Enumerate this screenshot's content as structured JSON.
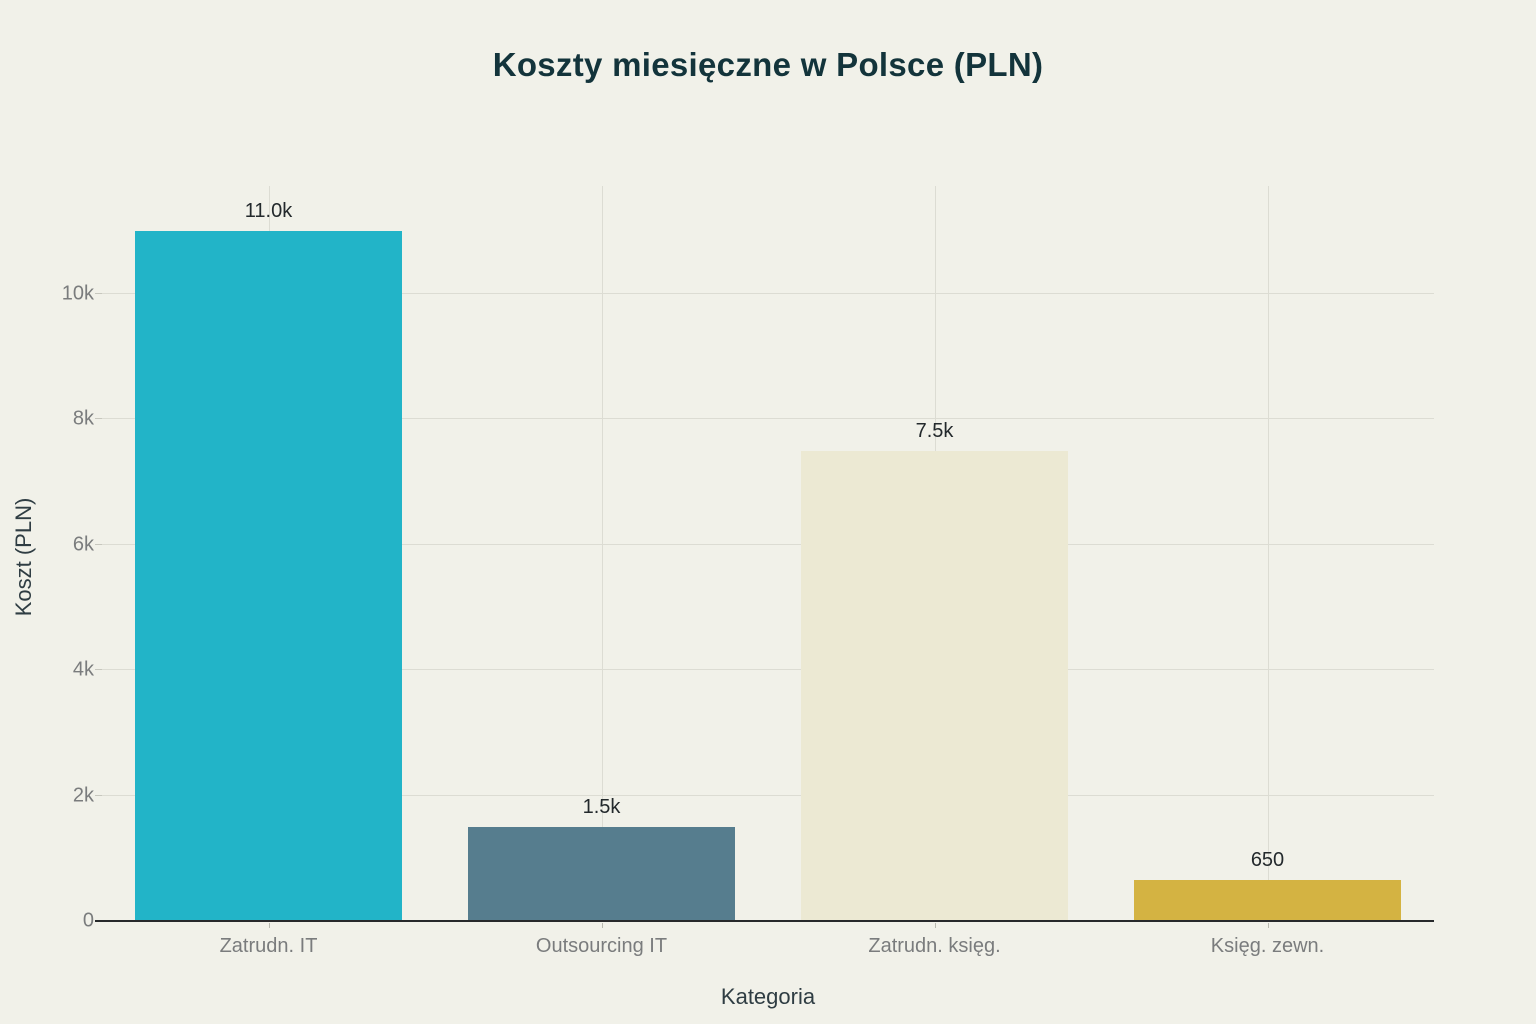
{
  "chart_data": {
    "type": "bar",
    "title": "Koszty miesięczne w Polsce (PLN)",
    "xlabel": "Kategoria",
    "ylabel": "Koszt (PLN)",
    "categories": [
      "Zatrudn. IT",
      "Outsourcing IT",
      "Zatrudn. księg.",
      "Księg. zewn."
    ],
    "values": [
      11000,
      1500,
      7500,
      650
    ],
    "bar_labels": [
      "11.0k",
      "1.5k",
      "7.5k",
      "650"
    ],
    "bar_colors": [
      "#22b4c8",
      "#567d8e",
      "#ece9d3",
      "#d4b342"
    ],
    "yticks": [
      0,
      2000,
      4000,
      6000,
      8000,
      10000
    ],
    "ytick_labels": [
      "0",
      "2k",
      "4k",
      "6k",
      "8k",
      "10k"
    ],
    "ylim": [
      0,
      11720
    ],
    "grid": true,
    "legend_position": "none",
    "colors": {
      "background": "#f1f1e9",
      "gridline": "#dcdcd3",
      "axis_line": "#27292b",
      "title_text": "#13343b",
      "tick_text": "#7a7c7d",
      "axis_title_text": "#2f3d43",
      "value_text": "#23292c"
    }
  }
}
